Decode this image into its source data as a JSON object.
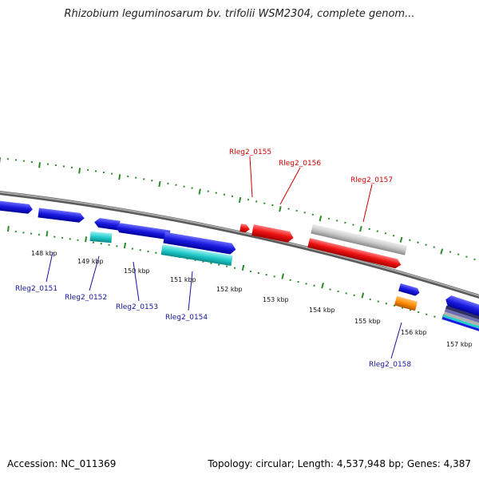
{
  "title": "Rhizobium leguminosarum bv. trifolii WSM2304, complete genom...",
  "footer": {
    "accession": "Accession: NC_011369",
    "summary": "Topology: circular; Length: 4,537,948 bp; Genes: 4,387"
  },
  "colors": {
    "backbone": "#808080",
    "tick": "#2a8a2a",
    "forward_gene": "#1a1ae0",
    "reverse_gene": "#ee1111",
    "cyan_feature": "#22cccc",
    "grey_feature": "#c8c8c8",
    "orange_feature": "#ff8c00",
    "label_blue": "#1414a0",
    "label_red": "#cc0000"
  },
  "ruler": {
    "tick_labels": [
      "148 kbp",
      "149 kbp",
      "150 kbp",
      "151 kbp",
      "152 kbp",
      "153 kbp",
      "154 kbp",
      "155 kbp",
      "156 kbp",
      "157 kbp"
    ]
  },
  "gene_labels": {
    "top": [
      "Rleg2_0155",
      "Rleg2_0156",
      "Rleg2_0157"
    ],
    "bottom": [
      "Rleg2_0151",
      "Rleg2_0152",
      "Rleg2_0153",
      "Rleg2_0154",
      "Rleg2_0158"
    ]
  }
}
